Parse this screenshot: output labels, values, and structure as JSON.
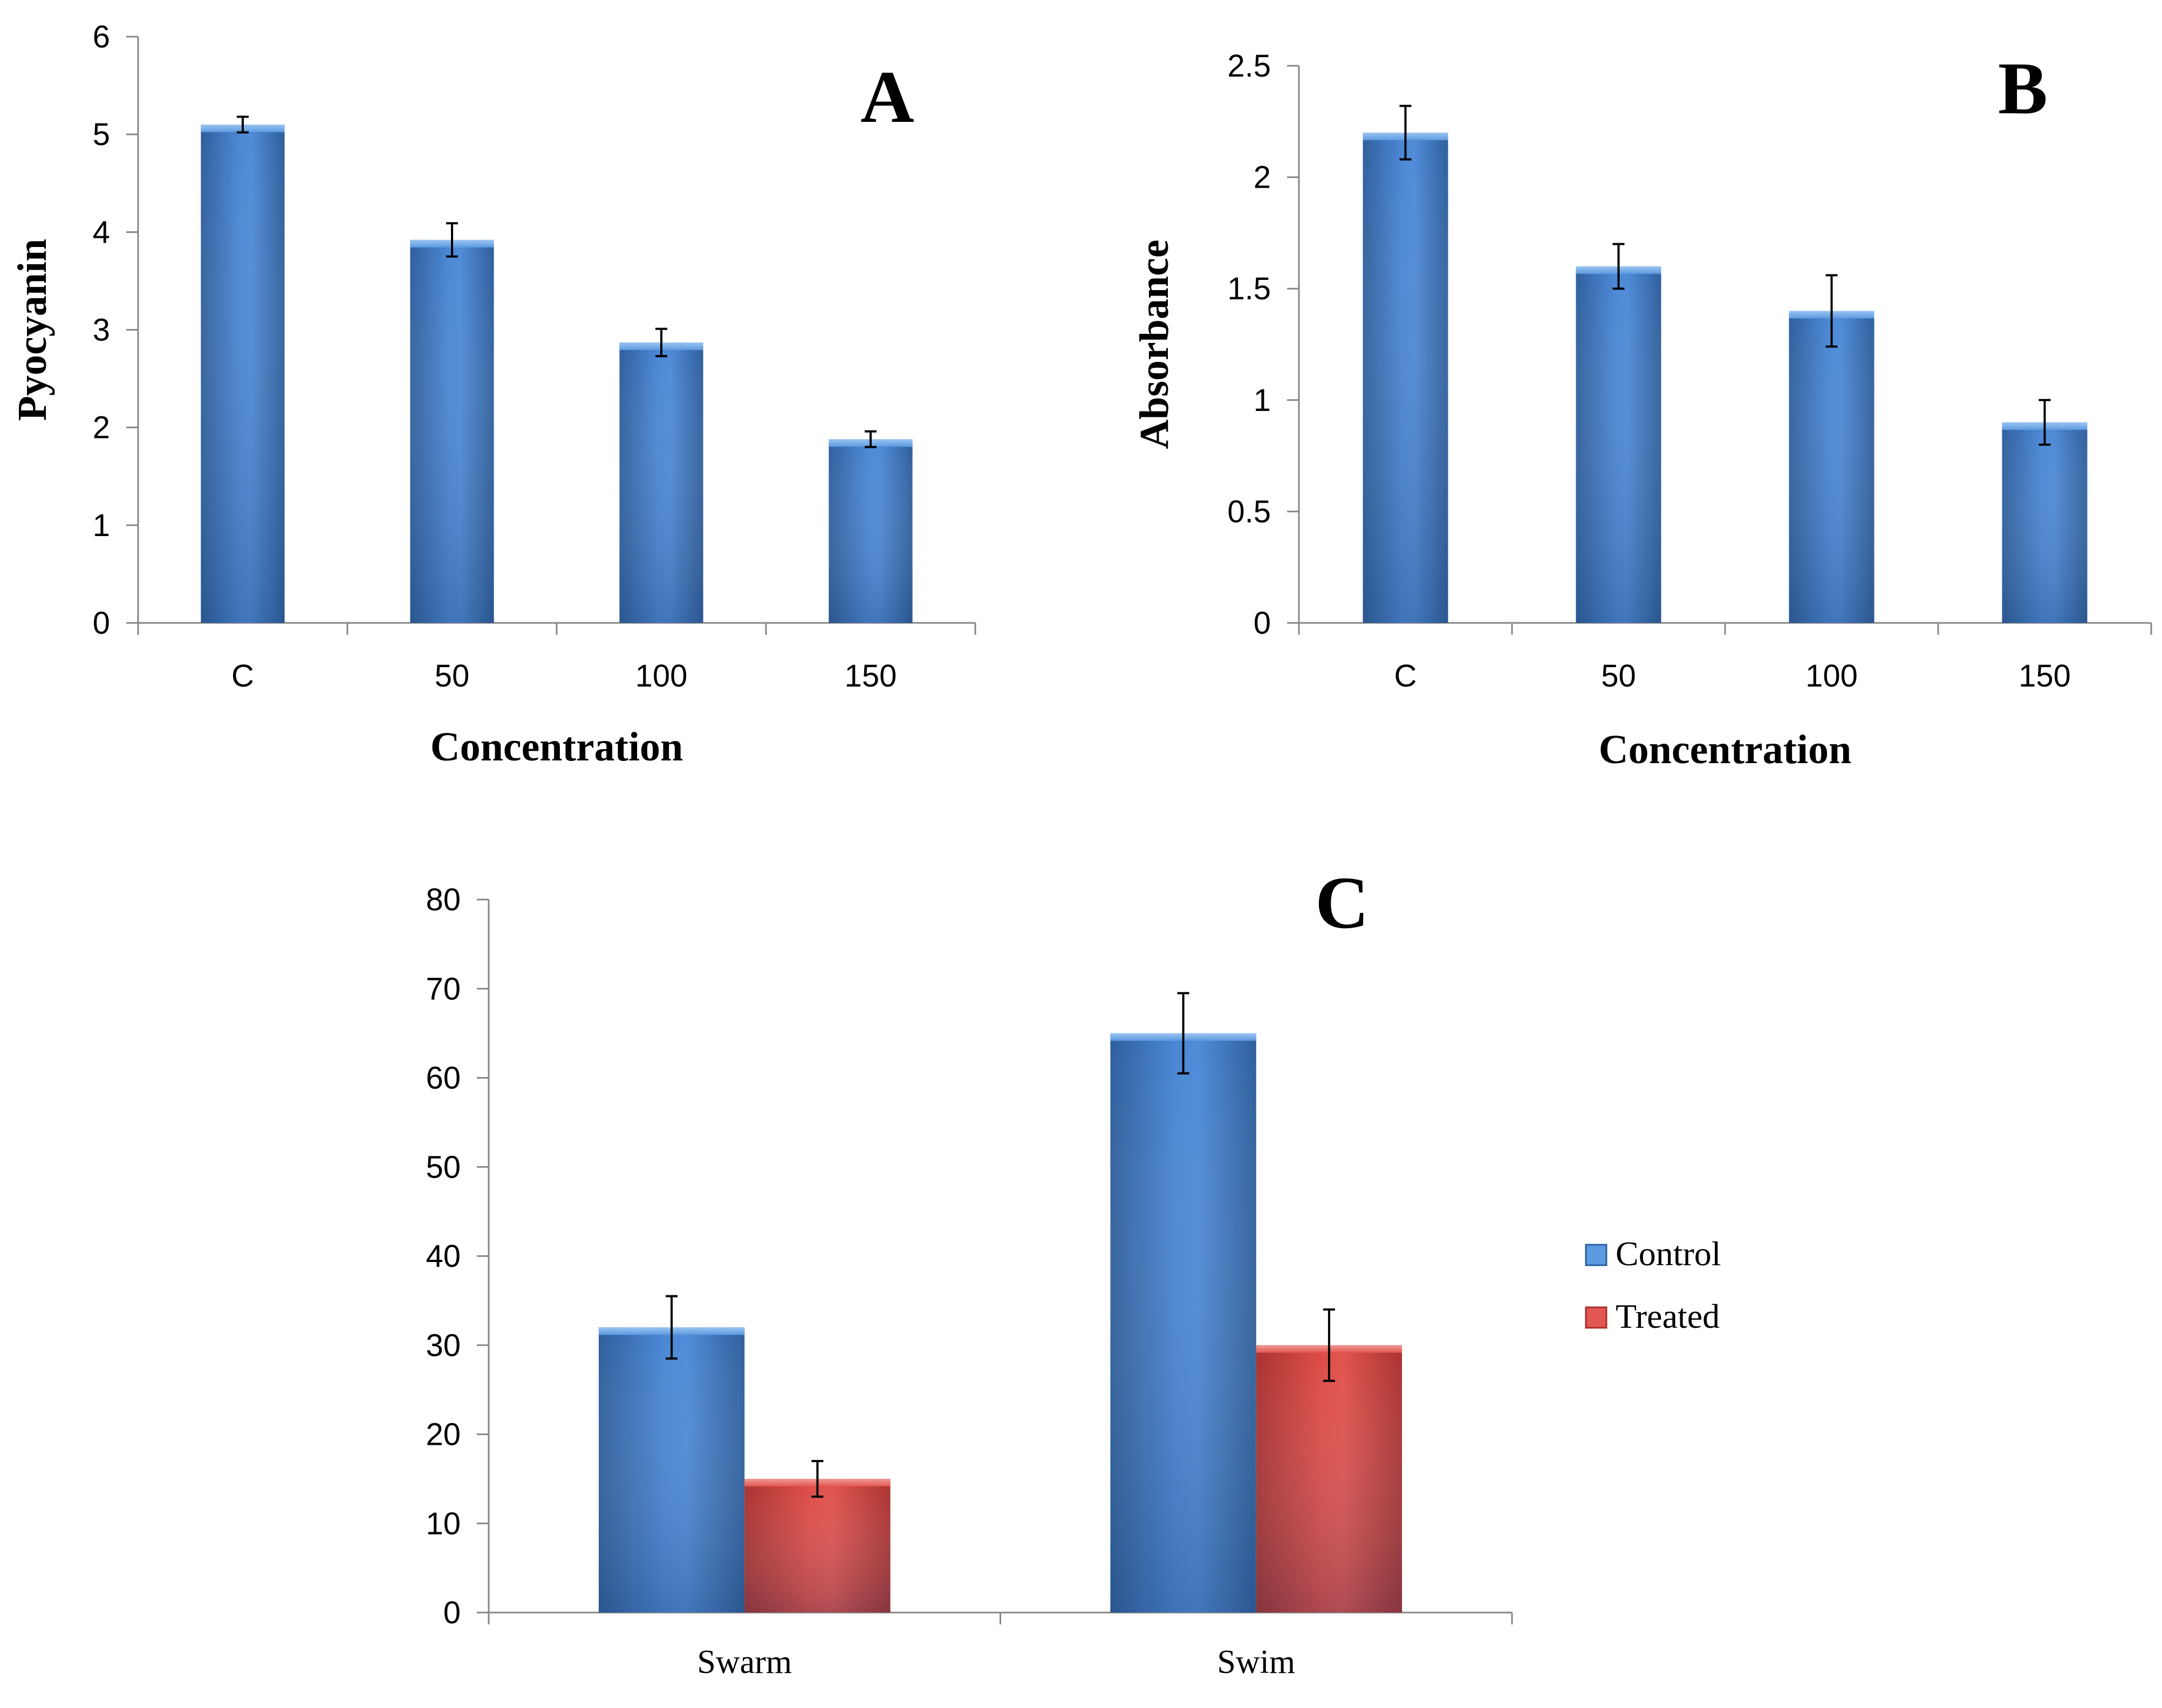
{
  "colors": {
    "blue_light": "#5b9ae0",
    "blue_dark": "#2a5c9e",
    "red_light": "#e25752",
    "red_dark": "#a82f2c",
    "axis": "#868686"
  },
  "chart_data": [
    {
      "type": "bar",
      "panel_label": "A",
      "categories": [
        "C",
        "50",
        "100",
        "150"
      ],
      "values": [
        5.1,
        3.92,
        2.87,
        1.88
      ],
      "errors": [
        0.08,
        0.17,
        0.14,
        0.08
      ],
      "xlabel": "Concentration",
      "ylabel": "Pyocyanin",
      "ylim": [
        0,
        6
      ],
      "yticks": [
        "0",
        "1",
        "2",
        "3",
        "4",
        "5",
        "6"
      ],
      "grid": false
    },
    {
      "type": "bar",
      "panel_label": "B",
      "categories": [
        "C",
        "50",
        "100",
        "150"
      ],
      "values": [
        2.2,
        1.6,
        1.4,
        0.9
      ],
      "errors": [
        0.12,
        0.1,
        0.16,
        0.1
      ],
      "xlabel": "Concentration",
      "ylabel": "Absorbance",
      "ylim": [
        0,
        2.5
      ],
      "yticks": [
        "0",
        "0.5",
        "1",
        "1.5",
        "2",
        "2.5"
      ],
      "grid": false
    },
    {
      "type": "bar",
      "panel_label": "C",
      "categories": [
        "Swarm",
        "Swim"
      ],
      "series": [
        {
          "name": "Control",
          "values": [
            32,
            65
          ],
          "errors": [
            3.5,
            4.5
          ]
        },
        {
          "name": "Treated",
          "values": [
            15,
            30
          ],
          "errors": [
            2,
            4
          ]
        }
      ],
      "xlabel": "",
      "ylabel": "",
      "ylim": [
        0,
        80
      ],
      "yticks": [
        "0",
        "10",
        "20",
        "30",
        "40",
        "50",
        "60",
        "70",
        "80"
      ],
      "legend": "right",
      "grid": false
    }
  ]
}
